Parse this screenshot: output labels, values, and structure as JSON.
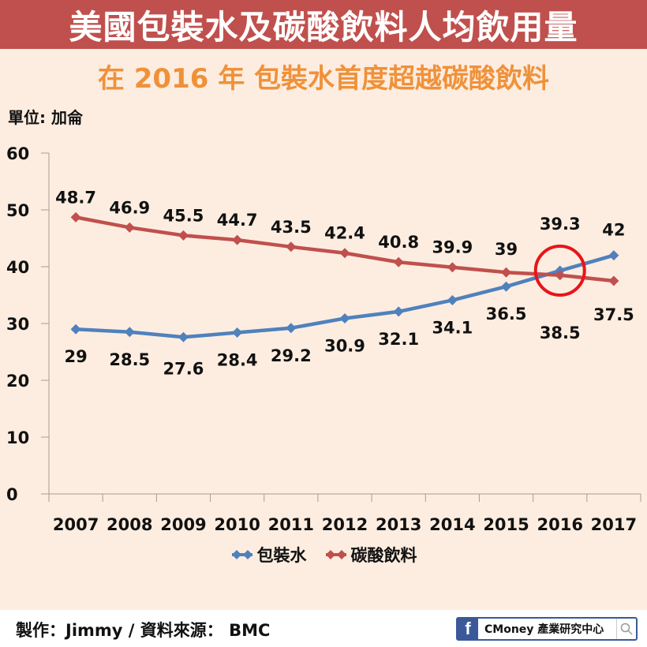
{
  "header": {
    "title": "美國包裝水及碳酸飲料人均飲用量",
    "subtitle": "在 2016 年 包裝水首度超越碳酸飲料"
  },
  "unit_label": "單位: 加侖",
  "legend": {
    "series1": "包裝水",
    "series2": "碳酸飲料"
  },
  "footer": {
    "credit": "製作：Jimmy / 資料來源： BMC",
    "badge_text": "CMoney 產業研究中心",
    "badge_icon": "facebook-icon",
    "search_icon": "search-icon"
  },
  "colors": {
    "header_bg": "#c0504d",
    "subtitle": "#f0913a",
    "background": "#fdede0",
    "series1": "#4f81bd",
    "series2": "#c0504d",
    "highlight_circle": "#e8141a"
  },
  "chart_data": {
    "type": "line",
    "title": "美國包裝水及碳酸飲料人均飲用量",
    "subtitle": "在 2016 年 包裝水首度超越碳酸飲料",
    "xlabel": "",
    "ylabel": "單位: 加侖",
    "categories": [
      "2007",
      "2008",
      "2009",
      "2010",
      "2011",
      "2012",
      "2013",
      "2014",
      "2015",
      "2016",
      "2017"
    ],
    "series": [
      {
        "name": "包裝水",
        "values": [
          29,
          28.5,
          27.6,
          28.4,
          29.2,
          30.9,
          32.1,
          34.1,
          36.5,
          39.3,
          42
        ]
      },
      {
        "name": "碳酸飲料",
        "values": [
          48.7,
          46.9,
          45.5,
          44.7,
          43.5,
          42.4,
          40.8,
          39.9,
          39,
          38.5,
          37.5
        ]
      }
    ],
    "ylim": [
      0,
      60
    ],
    "yticks": [
      0,
      10,
      20,
      30,
      40,
      50,
      60
    ],
    "grid": false,
    "legend_position": "bottom",
    "annotation": {
      "type": "circle",
      "at": "2016",
      "note": "crossover"
    }
  }
}
